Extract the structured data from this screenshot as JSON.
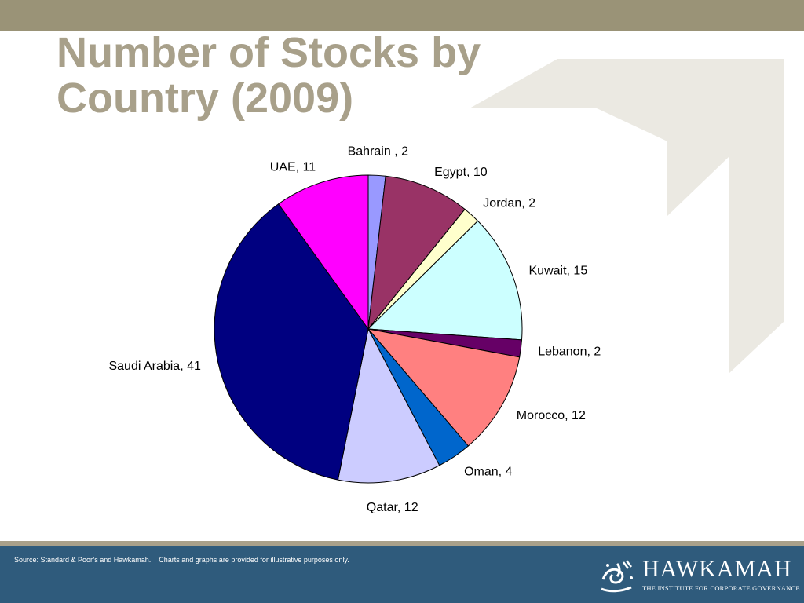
{
  "slide": {
    "title": "Number of Stocks by Country (2009)",
    "source_note": "Source: Standard & Poor’s and Hawkamah.    Charts and graphs are provided for illustrative purposes only.",
    "logo": {
      "name": "HAWKAMAH",
      "tagline": "THE INSTITUTE FOR CORPORATE GOVERNANCE"
    }
  },
  "colors": {
    "top_bar": "#9a9377",
    "title": "#a8a08a",
    "footer": "#2f5b7c",
    "watermark": "#ebe9e2"
  },
  "chart_data": {
    "type": "pie",
    "title": "",
    "start_angle_deg": 0,
    "direction": "clockwise",
    "show_labels": "outside",
    "slices": [
      {
        "label": "Bahrain",
        "value": 2,
        "text": "Bahrain , 2",
        "color": "#9999ff"
      },
      {
        "label": "Egypt",
        "value": 10,
        "text": "Egypt, 10",
        "color": "#993366"
      },
      {
        "label": "Jordan",
        "value": 2,
        "text": "Jordan, 2",
        "color": "#ffffcc"
      },
      {
        "label": "Kuwait",
        "value": 15,
        "text": "Kuwait, 15",
        "color": "#ccffff"
      },
      {
        "label": "Lebanon",
        "value": 2,
        "text": "Lebanon, 2",
        "color": "#660066"
      },
      {
        "label": "Morocco",
        "value": 12,
        "text": "Morocco, 12",
        "color": "#ff8080"
      },
      {
        "label": "Oman",
        "value": 4,
        "text": "Oman, 4",
        "color": "#0066cc"
      },
      {
        "label": "Qatar",
        "value": 12,
        "text": "Qatar, 12",
        "color": "#ccccff"
      },
      {
        "label": "Saudi Arabia",
        "value": 41,
        "text": "Saudi Arabia, 41",
        "color": "#000080"
      },
      {
        "label": "UAE",
        "value": 11,
        "text": "UAE, 11",
        "color": "#ff00ff"
      }
    ]
  }
}
